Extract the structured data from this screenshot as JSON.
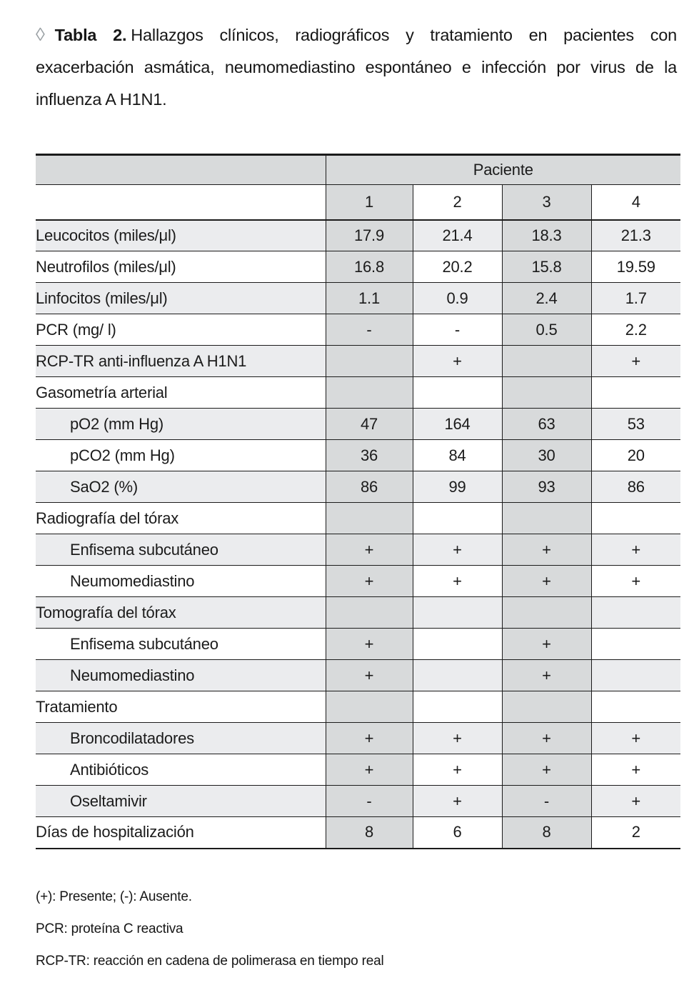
{
  "title": {
    "marker": "◊",
    "label": "Tabla 2.",
    "text": "Hallazgos clínicos, radiográficos y tratamiento en pacientes con exacerbación asmática, neumomediastino espontáneo e infección por virus de la influenza A H1N1."
  },
  "table": {
    "group_header": "Paciente",
    "columns": [
      "1",
      "2",
      "3",
      "4"
    ],
    "rows": [
      {
        "label": "Leucocitos (miles/μl)",
        "indent": false,
        "values": [
          "17.9",
          "21.4",
          "18.3",
          "21.3"
        ]
      },
      {
        "label": "Neutrofilos (miles/μl)",
        "indent": false,
        "values": [
          "16.8",
          "20.2",
          "15.8",
          "19.59"
        ]
      },
      {
        "label": "Linfocitos (miles/μl)",
        "indent": false,
        "values": [
          "1.1",
          "0.9",
          "2.4",
          "1.7"
        ]
      },
      {
        "label": "PCR (mg/ l)",
        "indent": false,
        "values": [
          "-",
          "-",
          "0.5",
          "2.2"
        ]
      },
      {
        "label": "RCP-TR anti-influenza A H1N1",
        "indent": false,
        "values": [
          "",
          "+",
          "",
          "+"
        ]
      },
      {
        "label": "Gasometría arterial",
        "indent": false,
        "values": [
          "",
          "",
          "",
          ""
        ]
      },
      {
        "label": "pO2 (mm Hg)",
        "indent": true,
        "values": [
          "47",
          "164",
          "63",
          "53"
        ]
      },
      {
        "label": "pCO2 (mm Hg)",
        "indent": true,
        "values": [
          "36",
          "84",
          "30",
          "20"
        ]
      },
      {
        "label": "SaO2 (%)",
        "indent": true,
        "values": [
          "86",
          "99",
          "93",
          "86"
        ]
      },
      {
        "label": "Radiografía del tórax",
        "indent": false,
        "values": [
          "",
          "",
          "",
          ""
        ]
      },
      {
        "label": "Enfisema subcutáneo",
        "indent": true,
        "values": [
          "+",
          "+",
          "+",
          "+"
        ]
      },
      {
        "label": "Neumomediastino",
        "indent": true,
        "values": [
          "+",
          "+",
          "+",
          "+"
        ]
      },
      {
        "label": "Tomografía del tórax",
        "indent": false,
        "values": [
          "",
          "",
          "",
          ""
        ]
      },
      {
        "label": "Enfisema subcutáneo",
        "indent": true,
        "values": [
          "+",
          "",
          "+",
          ""
        ]
      },
      {
        "label": "Neumomediastino",
        "indent": true,
        "values": [
          "+",
          "",
          "+",
          ""
        ]
      },
      {
        "label": "Tratamiento",
        "indent": false,
        "values": [
          "",
          "",
          "",
          ""
        ]
      },
      {
        "label": "Broncodilatadores",
        "indent": true,
        "values": [
          "+",
          "+",
          "+",
          "+"
        ]
      },
      {
        "label": "Antibióticos",
        "indent": true,
        "values": [
          "+",
          "+",
          "+",
          "+"
        ]
      },
      {
        "label": "Oseltamivir",
        "indent": true,
        "values": [
          "-",
          "+",
          "-",
          "+"
        ]
      },
      {
        "label": "Días de hospitalización",
        "indent": false,
        "values": [
          "8",
          "6",
          "8",
          "2"
        ]
      }
    ]
  },
  "footnotes": [
    "(+): Presente; (-): Ausente.",
    "PCR: proteína C reactiva",
    "RCP-TR: reacción en cadena de polimerasa en tiempo real"
  ],
  "colors": {
    "column_shade": "#d8dadb",
    "row_shade": "#ebecee",
    "border": "#1b1b1b",
    "marker": "#9aa0a4"
  }
}
